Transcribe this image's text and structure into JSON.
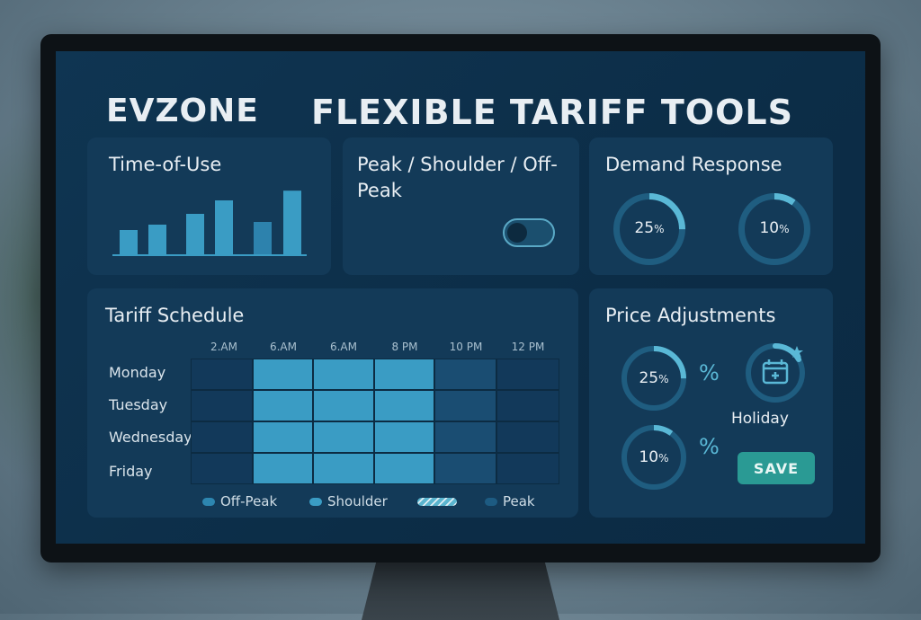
{
  "header": {
    "brand": "EVZONE",
    "title": "FLEXIBLE TARIFF TOOLS"
  },
  "time_of_use": {
    "title": "Time-of-Use",
    "bar_levels": [
      0.45,
      0.55,
      0.75,
      1.0,
      0.6,
      1.18
    ]
  },
  "peak_card": {
    "title": "Peak / Shoulder / Off-Peak",
    "toggle_on": false
  },
  "demand_response": {
    "title": "Demand Response",
    "rings": [
      {
        "value": "25",
        "unit": "%",
        "fraction": 0.25
      },
      {
        "value": "10",
        "unit": "%",
        "fraction": 0.1
      }
    ]
  },
  "tariff_schedule": {
    "title": "Tariff Schedule",
    "times": [
      "2.AM",
      "6.AM",
      "6.AM",
      "8 PM",
      "10 PM",
      "12 PM"
    ],
    "days": [
      "Monday",
      "Tuesday",
      "Wednesday",
      "Friday"
    ],
    "rows": [
      [
        "off-peak",
        "shoulder",
        "shoulder",
        "shoulder",
        "peak",
        "off-peak"
      ],
      [
        "off-peak",
        "shoulder",
        "shoulder",
        "shoulder",
        "peak",
        "off-peak"
      ],
      [
        "off-peak",
        "shoulder",
        "shoulder",
        "shoulder",
        "peak",
        "off-peak"
      ],
      [
        "off-peak",
        "shoulder",
        "shoulder",
        "shoulder",
        "peak",
        "off-peak"
      ]
    ],
    "legend": [
      {
        "label": "Off-Peak",
        "color": "#2d86b0"
      },
      {
        "label": "Shoulder",
        "color": "#3a9cc4"
      },
      {
        "label": "",
        "color": "#5ab5cf"
      },
      {
        "label": "Peak",
        "color": "#1d5b82"
      }
    ]
  },
  "price_adjustments": {
    "title": "Price Adjustments",
    "rings": [
      {
        "value": "25",
        "unit": "%",
        "fraction": 0.25,
        "sign": "%"
      },
      {
        "value": "10",
        "unit": "%",
        "fraction": 0.1,
        "sign": "%"
      }
    ],
    "holiday_label": "Holiday",
    "holiday_icon": "calendar-plus-icon",
    "save_label": "SAVE"
  },
  "colors": {
    "accent": "#5ab8d6",
    "off_peak_cell": "#12395a",
    "shoulder_cell": "#3a9cc4",
    "peak_cell": "#1a4d72",
    "save": "#2a9a94"
  }
}
